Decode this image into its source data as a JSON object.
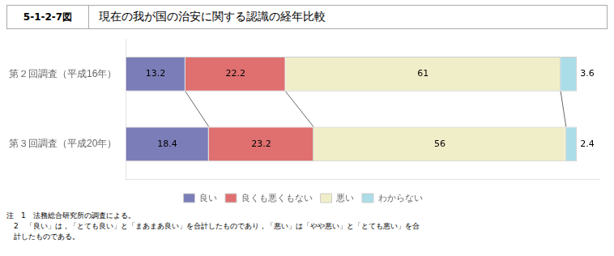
{
  "chart_data": {
    "type": "bar",
    "orientation": "horizontal",
    "stacked": true,
    "title": "現在の我が国の治安に関する認識の経年比較",
    "subtitle": "5-1-2-7図",
    "categories": [
      "第２回調査（平成16年）",
      "第３回調査（平成20年）"
    ],
    "series": [
      {
        "name": "良い",
        "color": "#7b7db8",
        "values": [
          13.2,
          18.4
        ]
      },
      {
        "name": "良くも悪くもない",
        "color": "#e07070",
        "values": [
          22.2,
          23.2
        ]
      },
      {
        "name": "悪い",
        "color": "#f0eec8",
        "values": [
          61.0,
          56.0
        ]
      },
      {
        "name": "わからない",
        "color": "#aadde8",
        "values": [
          3.6,
          2.4
        ]
      }
    ],
    "xlim": [
      0,
      105
    ],
    "data_labels": true,
    "tick_labels": "y",
    "grid": false,
    "legend": "bottom",
    "annotations": [
      "注　1　法務総合研究所の調査による。",
      "　2　「良い」は，「とても良い」と「まあまあ良い」を合計したものであり，「悪い」は「やや悪い」と「とても悪い」を合",
      "　計したものである。"
    ]
  }
}
